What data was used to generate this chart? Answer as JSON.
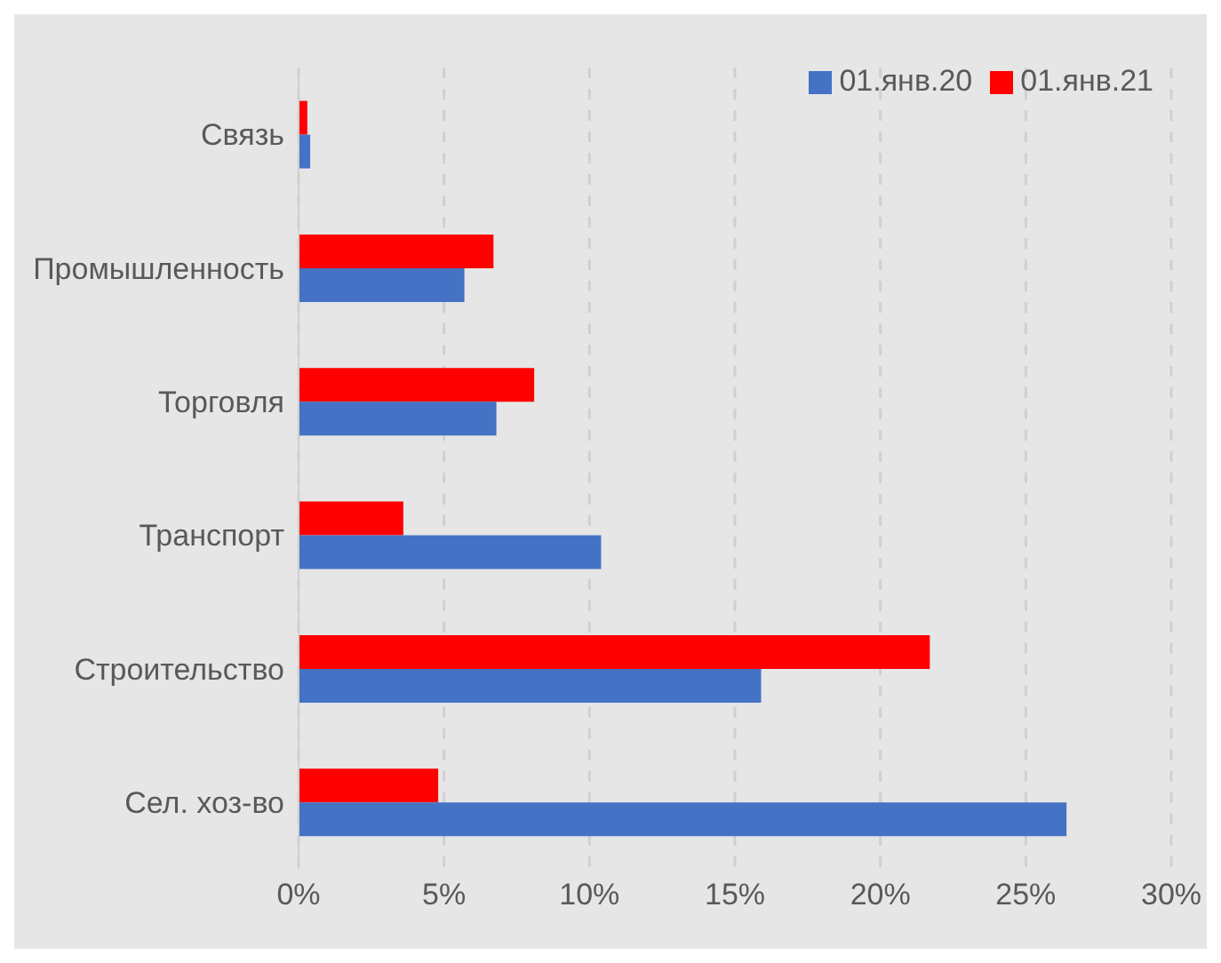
{
  "chart_data": {
    "type": "bar",
    "orientation": "horizontal",
    "categories": [
      "Связь",
      "Промышленность",
      "Торговля",
      "Транспорт",
      "Строительство",
      "Сел. хоз-во"
    ],
    "series": [
      {
        "name": "01.янв.21",
        "color": "#ff0000",
        "values": [
          0.3,
          6.7,
          8.1,
          3.6,
          21.7,
          4.8
        ]
      },
      {
        "name": "01.янв.20",
        "color": "#4472c4",
        "values": [
          0.4,
          5.7,
          6.8,
          10.4,
          15.9,
          26.4
        ]
      }
    ],
    "xlim": [
      0,
      30
    ],
    "xticks": [
      {
        "value": 0,
        "label": "0%"
      },
      {
        "value": 5,
        "label": "5%"
      },
      {
        "value": 10,
        "label": "10%"
      },
      {
        "value": 15,
        "label": "15%"
      },
      {
        "value": 20,
        "label": "20%"
      },
      {
        "value": 25,
        "label": "25%"
      },
      {
        "value": 30,
        "label": "30%"
      }
    ],
    "grid": "x",
    "legend": "top right"
  }
}
